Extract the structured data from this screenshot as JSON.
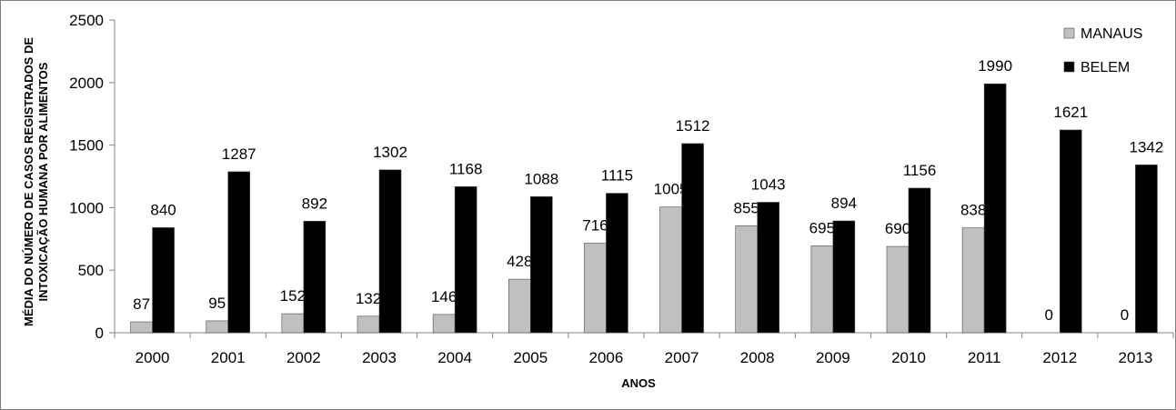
{
  "chart_data": {
    "type": "bar",
    "categories": [
      "2000",
      "2001",
      "2002",
      "2003",
      "2004",
      "2005",
      "2006",
      "2007",
      "2008",
      "2009",
      "2010",
      "2011",
      "2012",
      "2013"
    ],
    "series": [
      {
        "name": "MANAUS",
        "color": "#c0c0c0",
        "values": [
          87,
          95,
          152,
          132,
          146,
          428,
          716,
          1005,
          855,
          695,
          690,
          838,
          0,
          0
        ]
      },
      {
        "name": "BELEM",
        "color": "#000000",
        "values": [
          840,
          1287,
          892,
          1302,
          1168,
          1088,
          1115,
          1512,
          1043,
          894,
          1156,
          1990,
          1621,
          1342
        ]
      }
    ],
    "xlabel": "ANOS",
    "ylabel_lines": [
      "MÉDIA DO NÚMERO DE CASOS REGISTRADOS DE",
      "INTOXICAÇÃO HUMANA POR ALIMENTOS"
    ],
    "ylim": [
      0,
      2500
    ],
    "yticks": [
      "0",
      "500",
      "1000",
      "1500",
      "2000",
      "2500"
    ],
    "grid": false,
    "legend_position": "top-right",
    "data_labels": true
  }
}
